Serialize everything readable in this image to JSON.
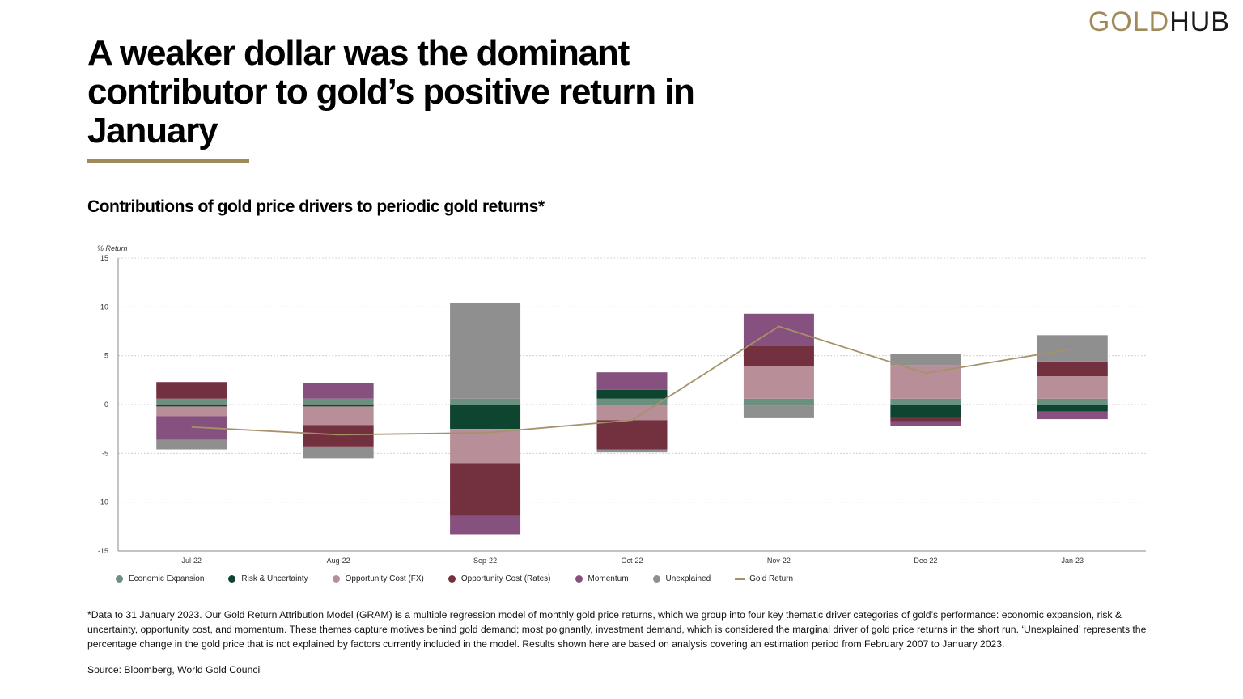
{
  "logo": {
    "part1": "GOLD",
    "part2": "HUB"
  },
  "title": "A weaker dollar was the dominant contributor to gold’s positive return in January",
  "subtitle": "Contributions of gold price drivers to periodic gold returns*",
  "footnote": "*Data to 31 January 2023. Our Gold Return Attribution Model (GRAM) is a multiple regression model of monthly gold price returns, which we group into four key thematic driver categories of gold’s performance: economic expansion, risk & uncertainty, opportunity cost, and momentum. These themes capture motives behind gold demand; most poignantly, investment demand, which is considered the marginal driver of gold price returns in the short run. ‘Unexplained’ represents the percentage change in the gold price that is not explained by factors currently included in the model. Results shown here are based on analysis covering an estimation period from February 2007 to January 2023.",
  "source": "Source: Bloomberg, World Gold Council",
  "chart_data": {
    "type": "bar",
    "stacked": true,
    "ylabel": "% Return",
    "ylim": [
      -15,
      15
    ],
    "yticks": [
      15,
      10,
      5,
      0,
      -5,
      -10,
      -15
    ],
    "categories": [
      "Jul-22",
      "Aug-22",
      "Sep-22",
      "Oct-22",
      "Nov-22",
      "Dec-22",
      "Jan-23"
    ],
    "series": [
      {
        "name": "Economic Expansion",
        "color": "#6b9080",
        "values": [
          0.6,
          0.6,
          0.6,
          0.6,
          0.6,
          0.6,
          0.6
        ]
      },
      {
        "name": "Risk & Uncertainty",
        "color": "#0d4530",
        "values": [
          -0.2,
          -0.2,
          -2.5,
          0.9,
          -0.1,
          -1.4,
          -0.7
        ]
      },
      {
        "name": "Opportunity Cost (FX)",
        "color": "#b88f99",
        "values": [
          -1.0,
          -1.9,
          -3.5,
          -1.6,
          3.3,
          3.4,
          2.3
        ]
      },
      {
        "name": "Opportunity Cost (Rates)",
        "color": "#73303f",
        "values": [
          1.7,
          -2.2,
          -5.4,
          -3.0,
          2.1,
          -0.3,
          1.5
        ]
      },
      {
        "name": "Momentum",
        "color": "#87517f",
        "values": [
          -2.4,
          1.6,
          -1.9,
          1.8,
          3.3,
          -0.5,
          -0.8
        ]
      },
      {
        "name": "Unexplained",
        "color": "#8f8f8f",
        "values": [
          -1.0,
          -1.2,
          9.8,
          -0.3,
          -1.3,
          1.2,
          2.7
        ]
      }
    ],
    "line": {
      "name": "Gold Return",
      "color": "#a5916a",
      "values": [
        -2.3,
        -3.1,
        -2.9,
        -1.6,
        8.0,
        3.2,
        5.7
      ]
    },
    "grid": true,
    "legend": "bottom"
  }
}
